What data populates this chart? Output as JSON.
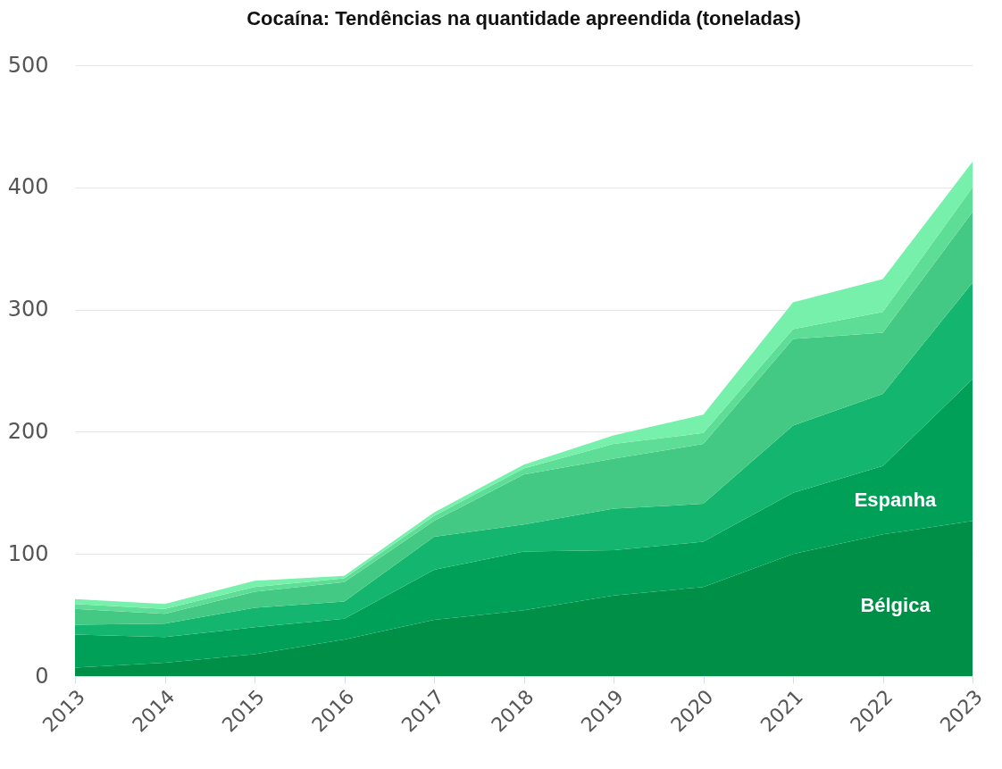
{
  "chart_data": {
    "type": "area",
    "title": "Cocaína: Tendências na quantidade apreendida (toneladas)",
    "categories": [
      "2013",
      "2014",
      "2015",
      "2016",
      "2017",
      "2018",
      "2019",
      "2020",
      "2021",
      "2022",
      "2023"
    ],
    "stacked": true,
    "series": [
      {
        "name": "Bélgica",
        "color": "#008f47",
        "values": [
          7,
          11,
          18,
          30,
          46,
          54,
          66,
          73,
          100,
          116,
          127
        ]
      },
      {
        "name": "Espanha",
        "color": "#00a058",
        "values": [
          27,
          21,
          22,
          17,
          41,
          48,
          37,
          37,
          50,
          56,
          116
        ]
      },
      {
        "color": "#14b56e",
        "values": [
          8,
          11,
          16,
          14,
          27,
          22,
          34,
          31,
          55,
          59,
          79
        ]
      },
      {
        "color": "#44c984",
        "values": [
          13,
          8,
          13,
          16,
          13,
          41,
          41,
          49,
          71,
          50,
          58
        ]
      },
      {
        "color": "#5edd97",
        "values": [
          4,
          4,
          4,
          3,
          4,
          5,
          12,
          9,
          8,
          17,
          20
        ]
      },
      {
        "color": "#77f0ac",
        "values": [
          4,
          4,
          5,
          2,
          3,
          3,
          7,
          15,
          22,
          27,
          21
        ]
      }
    ],
    "ylim": [
      0,
      500
    ],
    "yticks": [
      0,
      100,
      200,
      300,
      400,
      500
    ],
    "grid": "y"
  }
}
